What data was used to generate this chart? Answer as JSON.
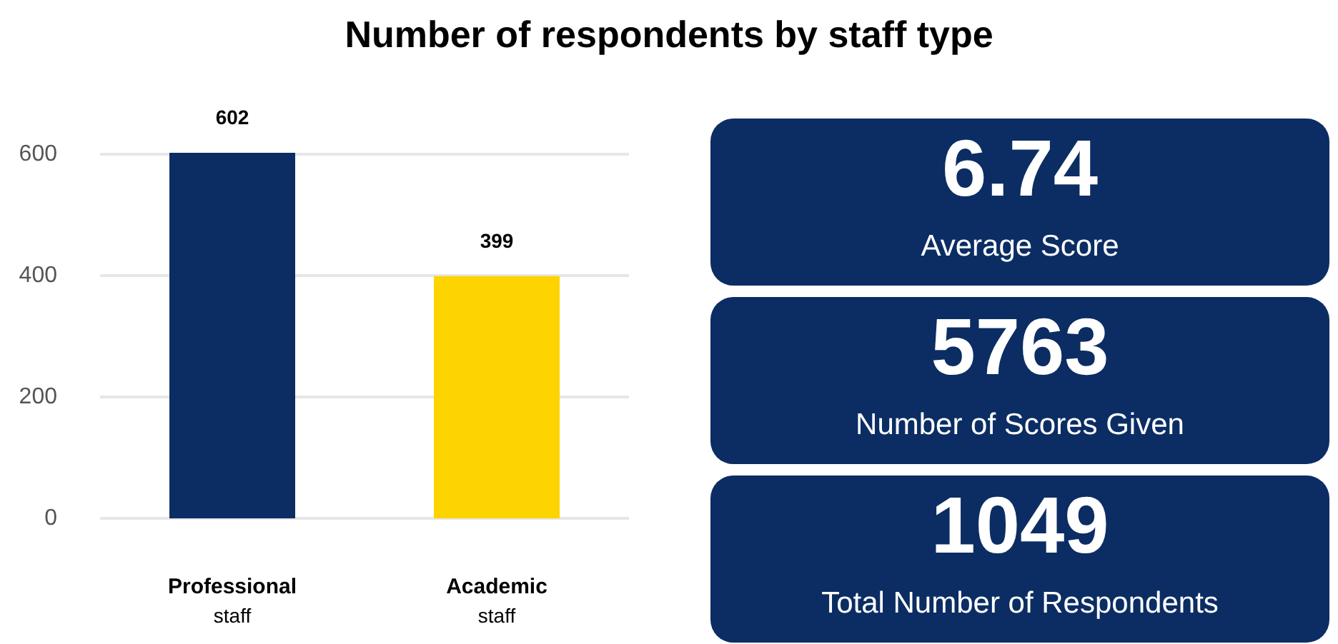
{
  "chart_data": [
    {
      "type": "bar",
      "title": "Number of respondents by staff type",
      "categories": [
        "Professional staff",
        "Academic staff"
      ],
      "values": [
        602,
        399
      ],
      "colors": [
        "#0b2d63",
        "#fdd300"
      ],
      "ylim": [
        0,
        602
      ],
      "yticks": [
        0,
        200,
        400,
        600
      ],
      "grid": "y",
      "data_labels": true
    },
    {
      "type": "other",
      "annotations": [
        "6.74",
        "Average Score",
        "5763",
        "Number of Scores Given",
        "1049",
        "Total Number of Respondents"
      ]
    }
  ]
}
